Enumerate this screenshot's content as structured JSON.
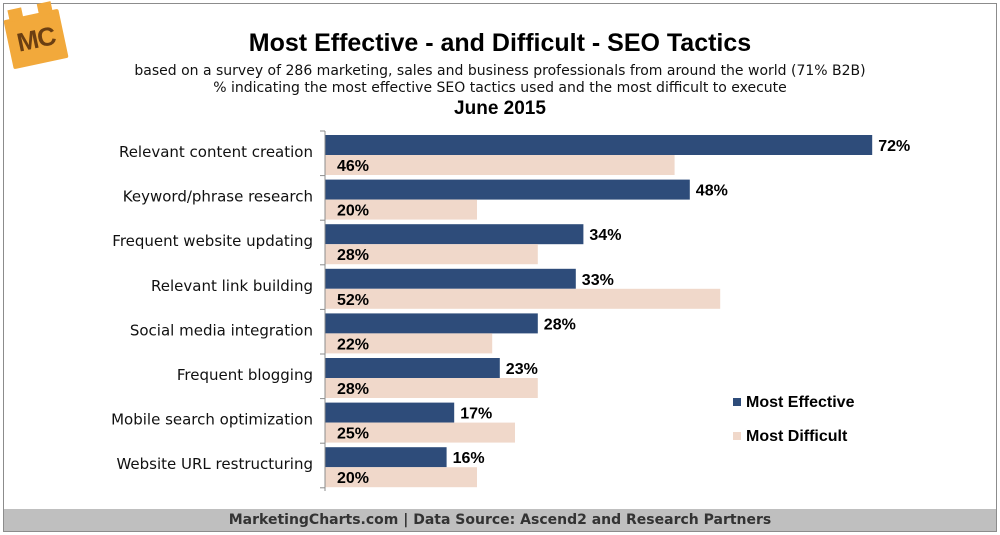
{
  "header": {
    "logo_text": "MC",
    "title": "Most Effective - and Difficult - SEO Tactics",
    "subtitle_1": "based on a survey of 286 marketing, sales and business professionals from around the world (71% B2B)",
    "subtitle_2": "% indicating the most effective SEO tactics used and the most difficult to execute",
    "date": "June 2015"
  },
  "footer": {
    "text": "MarketingCharts.com | Data Source: Ascend2 and Research Partners"
  },
  "chart_data": {
    "type": "bar",
    "orientation": "horizontal",
    "categories": [
      "Relevant content creation",
      "Keyword/phrase research",
      "Frequent website updating",
      "Relevant link building",
      "Social media integration",
      "Frequent blogging",
      "Mobile search optimization",
      "Website URL restructuring"
    ],
    "series": [
      {
        "name": "Most Effective",
        "color": "#2e4c7a",
        "values": [
          72,
          48,
          34,
          33,
          28,
          23,
          17,
          16
        ]
      },
      {
        "name": "Most Difficult",
        "color": "#f0d8ca",
        "values": [
          46,
          20,
          28,
          52,
          22,
          28,
          25,
          20
        ]
      }
    ],
    "value_suffix": "%",
    "xlim": [
      0,
      100
    ],
    "grid": false,
    "legend_position": "right"
  }
}
